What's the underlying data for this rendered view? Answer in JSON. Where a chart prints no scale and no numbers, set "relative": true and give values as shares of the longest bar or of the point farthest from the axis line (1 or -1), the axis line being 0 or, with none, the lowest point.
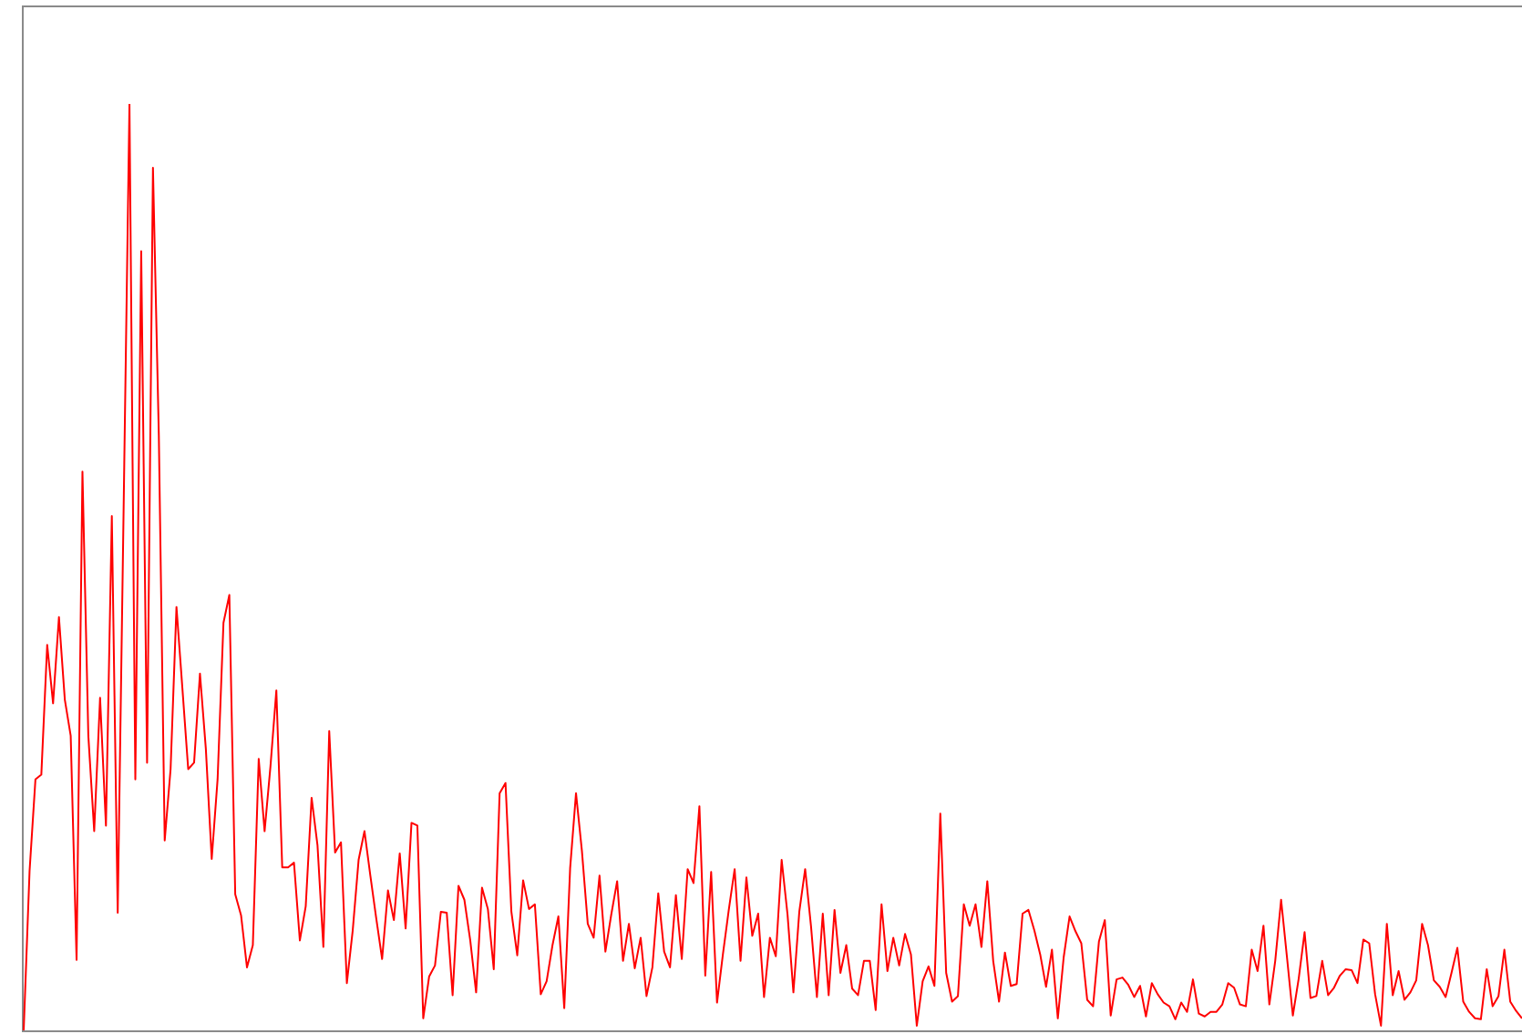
{
  "chart_data": {
    "type": "line",
    "relative": true,
    "categories": [
      null,
      null,
      null,
      null,
      null,
      null,
      null,
      null,
      null,
      null,
      null,
      null,
      null,
      null,
      null,
      null,
      null,
      null,
      null,
      null,
      null,
      null,
      null,
      null,
      null,
      null,
      null,
      null,
      null,
      null,
      null,
      null,
      null,
      null,
      null,
      null,
      null,
      null,
      null,
      null,
      null,
      null,
      null,
      null,
      null,
      null,
      null,
      null,
      null,
      null,
      null,
      null,
      null,
      null,
      null,
      null,
      null,
      null,
      null,
      null,
      null,
      null,
      null,
      null,
      null,
      null,
      null,
      null,
      null,
      null,
      null,
      null,
      null,
      null,
      null,
      null,
      null,
      null,
      null,
      null,
      null,
      null,
      null,
      null,
      null,
      null,
      null,
      null,
      null,
      null,
      null,
      null,
      null,
      null,
      null,
      null,
      null,
      null,
      null,
      null,
      null,
      null,
      null,
      null,
      null,
      null,
      null,
      null,
      null,
      null,
      null,
      null,
      null,
      null,
      null,
      null,
      null,
      null,
      null,
      null,
      null,
      null,
      null,
      null,
      null,
      null,
      null,
      null,
      null,
      null,
      null,
      null,
      null,
      null,
      null,
      null,
      null,
      null,
      null,
      null,
      null,
      null,
      null,
      null,
      null,
      null,
      null,
      null,
      null,
      null,
      null,
      null,
      null,
      null,
      null,
      null,
      null,
      null,
      null,
      null,
      null,
      null,
      null,
      null,
      null,
      null,
      null,
      null,
      null,
      null,
      null,
      null,
      null,
      null,
      null,
      null,
      null,
      null,
      null,
      null,
      null,
      null,
      null,
      null,
      null,
      null,
      null,
      null,
      null,
      null,
      null,
      null,
      null,
      null,
      null,
      null,
      null,
      null,
      null,
      null,
      null,
      null,
      null,
      null,
      null,
      null,
      null,
      null,
      null,
      null,
      null,
      null,
      null,
      null,
      null,
      null,
      null,
      null,
      null,
      null,
      null,
      null,
      null,
      null,
      null,
      null,
      null,
      null,
      null,
      null,
      null,
      null,
      null,
      null,
      null,
      null,
      null,
      null,
      null,
      null,
      null,
      null,
      null,
      null,
      null,
      null,
      null,
      null,
      null,
      null,
      null,
      null,
      null,
      null,
      null,
      null
    ],
    "series": [
      {
        "color": "#ff0000",
        "values": [
          0,
          0.172,
          0.271,
          0.276,
          0.416,
          0.353,
          0.446,
          0.357,
          0.318,
          0.076,
          0.603,
          0.318,
          0.215,
          0.359,
          0.221,
          0.555,
          0.127,
          0.56,
          1,
          0.271,
          0.841,
          0.289,
          0.931,
          0.642,
          0.205,
          0.282,
          0.457,
          0.37,
          0.282,
          0.289,
          0.385,
          0.304,
          0.185,
          0.271,
          0.44,
          0.47,
          0.147,
          0.124,
          0.068,
          0.092,
          0.293,
          0.215,
          0.285,
          0.367,
          0.176,
          0.176,
          0.181,
          0.097,
          0.134,
          0.251,
          0.2,
          0.09,
          0.323,
          0.192,
          0.203,
          0.051,
          0.108,
          0.184,
          0.215,
          0.167,
          0.121,
          0.077,
          0.151,
          0.119,
          0.191,
          0.11,
          0.224,
          0.221,
          0.013,
          0.058,
          0.07,
          0.128,
          0.127,
          0.038,
          0.156,
          0.141,
          0.097,
          0.041,
          0.154,
          0.131,
          0.066,
          0.256,
          0.267,
          0.128,
          0.081,
          0.162,
          0.131,
          0.136,
          0.039,
          0.053,
          0.092,
          0.123,
          0.024,
          0.175,
          0.256,
          0.194,
          0.115,
          0.1,
          0.167,
          0.085,
          0.125,
          0.161,
          0.075,
          0.115,
          0.067,
          0.1,
          0.037,
          0.068,
          0.148,
          0.085,
          0.068,
          0.146,
          0.077,
          0.174,
          0.159,
          0.242,
          0.059,
          0.171,
          0.03,
          0.082,
          0.13,
          0.174,
          0.075,
          0.165,
          0.102,
          0.126,
          0.036,
          0.1,
          0.08,
          0.184,
          0.125,
          0.041,
          0.128,
          0.174,
          0.112,
          0.036,
          0.126,
          0.038,
          0.13,
          0.062,
          0.092,
          0.045,
          0.038,
          0.075,
          0.075,
          0.022,
          0.136,
          0.064,
          0.1,
          0.07,
          0.104,
          0.082,
          0.005,
          0.053,
          0.069,
          0.048,
          0.234,
          0.062,
          0.031,
          0.037,
          0.136,
          0.113,
          0.136,
          0.09,
          0.161,
          0.075,
          0.031,
          0.084,
          0.048,
          0.05,
          0.126,
          0.13,
          0.108,
          0.082,
          0.047,
          0.087,
          0.013,
          0.079,
          0.123,
          0.107,
          0.094,
          0.033,
          0.026,
          0.096,
          0.119,
          0.016,
          0.055,
          0.057,
          0.049,
          0.036,
          0.048,
          0.015,
          0.051,
          0.039,
          0.03,
          0.026,
          0.012,
          0.03,
          0.02,
          0.055,
          0.018,
          0.015,
          0.02,
          0.02,
          0.028,
          0.051,
          0.046,
          0.028,
          0.026,
          0.087,
          0.064,
          0.113,
          0.028,
          0.075,
          0.141,
          0.079,
          0.016,
          0.056,
          0.106,
          0.035,
          0.037,
          0.075,
          0.038,
          0.046,
          0.059,
          0.066,
          0.065,
          0.051,
          0.098,
          0.094,
          0.039,
          0.005,
          0.115,
          0.038,
          0.064,
          0.033,
          0.041,
          0.054,
          0.115,
          0.092,
          0.054,
          0.047,
          0.036,
          0.062,
          0.089,
          0.031,
          0.02,
          0.013,
          0.012,
          0.066,
          0.026,
          0.037,
          0.087,
          0.031,
          0.021,
          0.013
        ]
      }
    ]
  }
}
